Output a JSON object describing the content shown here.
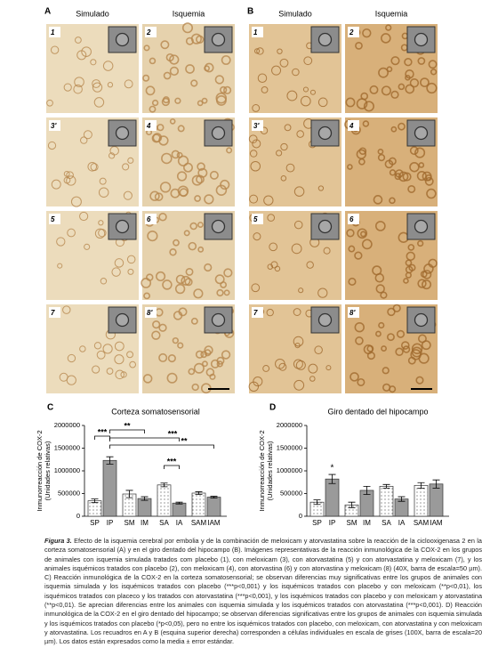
{
  "panels": [
    {
      "label": "A",
      "columns": [
        "Simulado",
        "Isquemia"
      ],
      "images": [
        "1",
        "2",
        "3'",
        "4",
        "5",
        "6",
        "7",
        "8'"
      ]
    },
    {
      "label": "B",
      "columns": [
        "Simulado",
        "Isquemia"
      ],
      "images": [
        "1",
        "2",
        "3'",
        "4",
        "5",
        "6",
        "7",
        "8'"
      ]
    }
  ],
  "chart_data": [
    {
      "type": "bar",
      "panel": "C",
      "title": "Corteza somatosensorial",
      "ylabel": [
        "Inmunorreacción de COX-2",
        "(Unidades relativas)"
      ],
      "categories": [
        "SP",
        "IP",
        "SM",
        "IM",
        "SA",
        "IA",
        "SAM",
        "IAM"
      ],
      "values": [
        340000,
        1230000,
        490000,
        390000,
        690000,
        290000,
        510000,
        420000
      ],
      "errors": [
        40000,
        80000,
        80000,
        40000,
        40000,
        20000,
        30000,
        20000
      ],
      "colors": [
        "#ffffff",
        "#9a9a9a",
        "#ffffff",
        "#9a9a9a",
        "#ffffff",
        "#9a9a9a",
        "#ffffff",
        "#9a9a9a"
      ],
      "patterns": [
        "dotted",
        "solid",
        "dotted",
        "solid",
        "dotted",
        "solid",
        "dotted",
        "solid"
      ],
      "ylim": [
        0,
        2000000
      ],
      "yticks": [
        0,
        500000,
        1000000,
        1500000,
        2000000
      ],
      "annotations": [
        "***",
        "**",
        "***",
        "***",
        "**"
      ]
    },
    {
      "type": "bar",
      "panel": "D",
      "title": "Giro dentado del hipocampo",
      "ylabel": [
        "Inmunorreacción de COX-2",
        "(Unidades relativas)"
      ],
      "categories": [
        "SP",
        "IP",
        "SM",
        "IM",
        "SA",
        "IA",
        "SAM",
        "IAM"
      ],
      "values": [
        310000,
        820000,
        250000,
        570000,
        660000,
        380000,
        680000,
        710000
      ],
      "errors": [
        50000,
        100000,
        60000,
        90000,
        40000,
        50000,
        60000,
        90000
      ],
      "colors": [
        "#ffffff",
        "#9a9a9a",
        "#ffffff",
        "#9a9a9a",
        "#ffffff",
        "#9a9a9a",
        "#ffffff",
        "#9a9a9a"
      ],
      "patterns": [
        "dotted",
        "solid",
        "dotted",
        "solid",
        "dotted",
        "solid",
        "dotted",
        "solid"
      ],
      "ylim": [
        0,
        2000000
      ],
      "yticks": [
        0,
        500000,
        1000000,
        1500000,
        2000000
      ],
      "annotations": [
        "*"
      ]
    }
  ],
  "caption": {
    "label": "Figura 3.",
    "text": "Efecto de la isquemia cerebral por embolia y de la combinación de meloxicam y atorvastatina sobre la reacción de la ciclooxigenasa 2 en la corteza somatosensorial (A) y en el giro dentado del hipocampo (B). Imágenes representativas de la reacción inmunológica de la COX-2 en los grupos de animales con isquemia simulada tratados com placebo (1), con meloxicam (3), con atorvastatina (5) y con atorvastatina y meloxicam (7), y los animales isquémicos tratados con placebo (2), con meloxicam (4), con atorvastina (6) y con atorvastina y meloxicam (8) (40X, barra de escala=50 µm). C) Reacción inmunológica de la COX-2 en la corteza somatosensorial; se observan diferencias muy significativas entre los grupos de animales con isquemia simulada y los isquémicos tratados con placebo (***p<0,001) y los isquémicos tratados con placebo y con meloxicam (**p<0,01), los isquémicos tratados con placeco y los tratados con atorvastatina (***p<0,001), y los isquémicos tratados con placebo y con meloxicam y atorvastatina (**p<0,01). Se aprecian diferencias entre los animales con isquemia simulada y los isquémicos tratados con atorvastatina (***p<0,001). D) Reacción inmunológica de la COX-2 en el giro dentado del hipocampo; se observan diferencias significativas entre los grupos de animales con isquemia simulada y los isquémicos tratados con placebo (*p<0,05), pero no entre los isquémicos tratados con placebo, con meloxicam, con atorvastatina y con meloxicam y atorvastatina. Los recuadros en A y B (esquina superior derecha) corresponden a células individuales en escala de grises (100X, barra de escala=20 µm). Los datos están expresados como la media ± error estándar."
  }
}
